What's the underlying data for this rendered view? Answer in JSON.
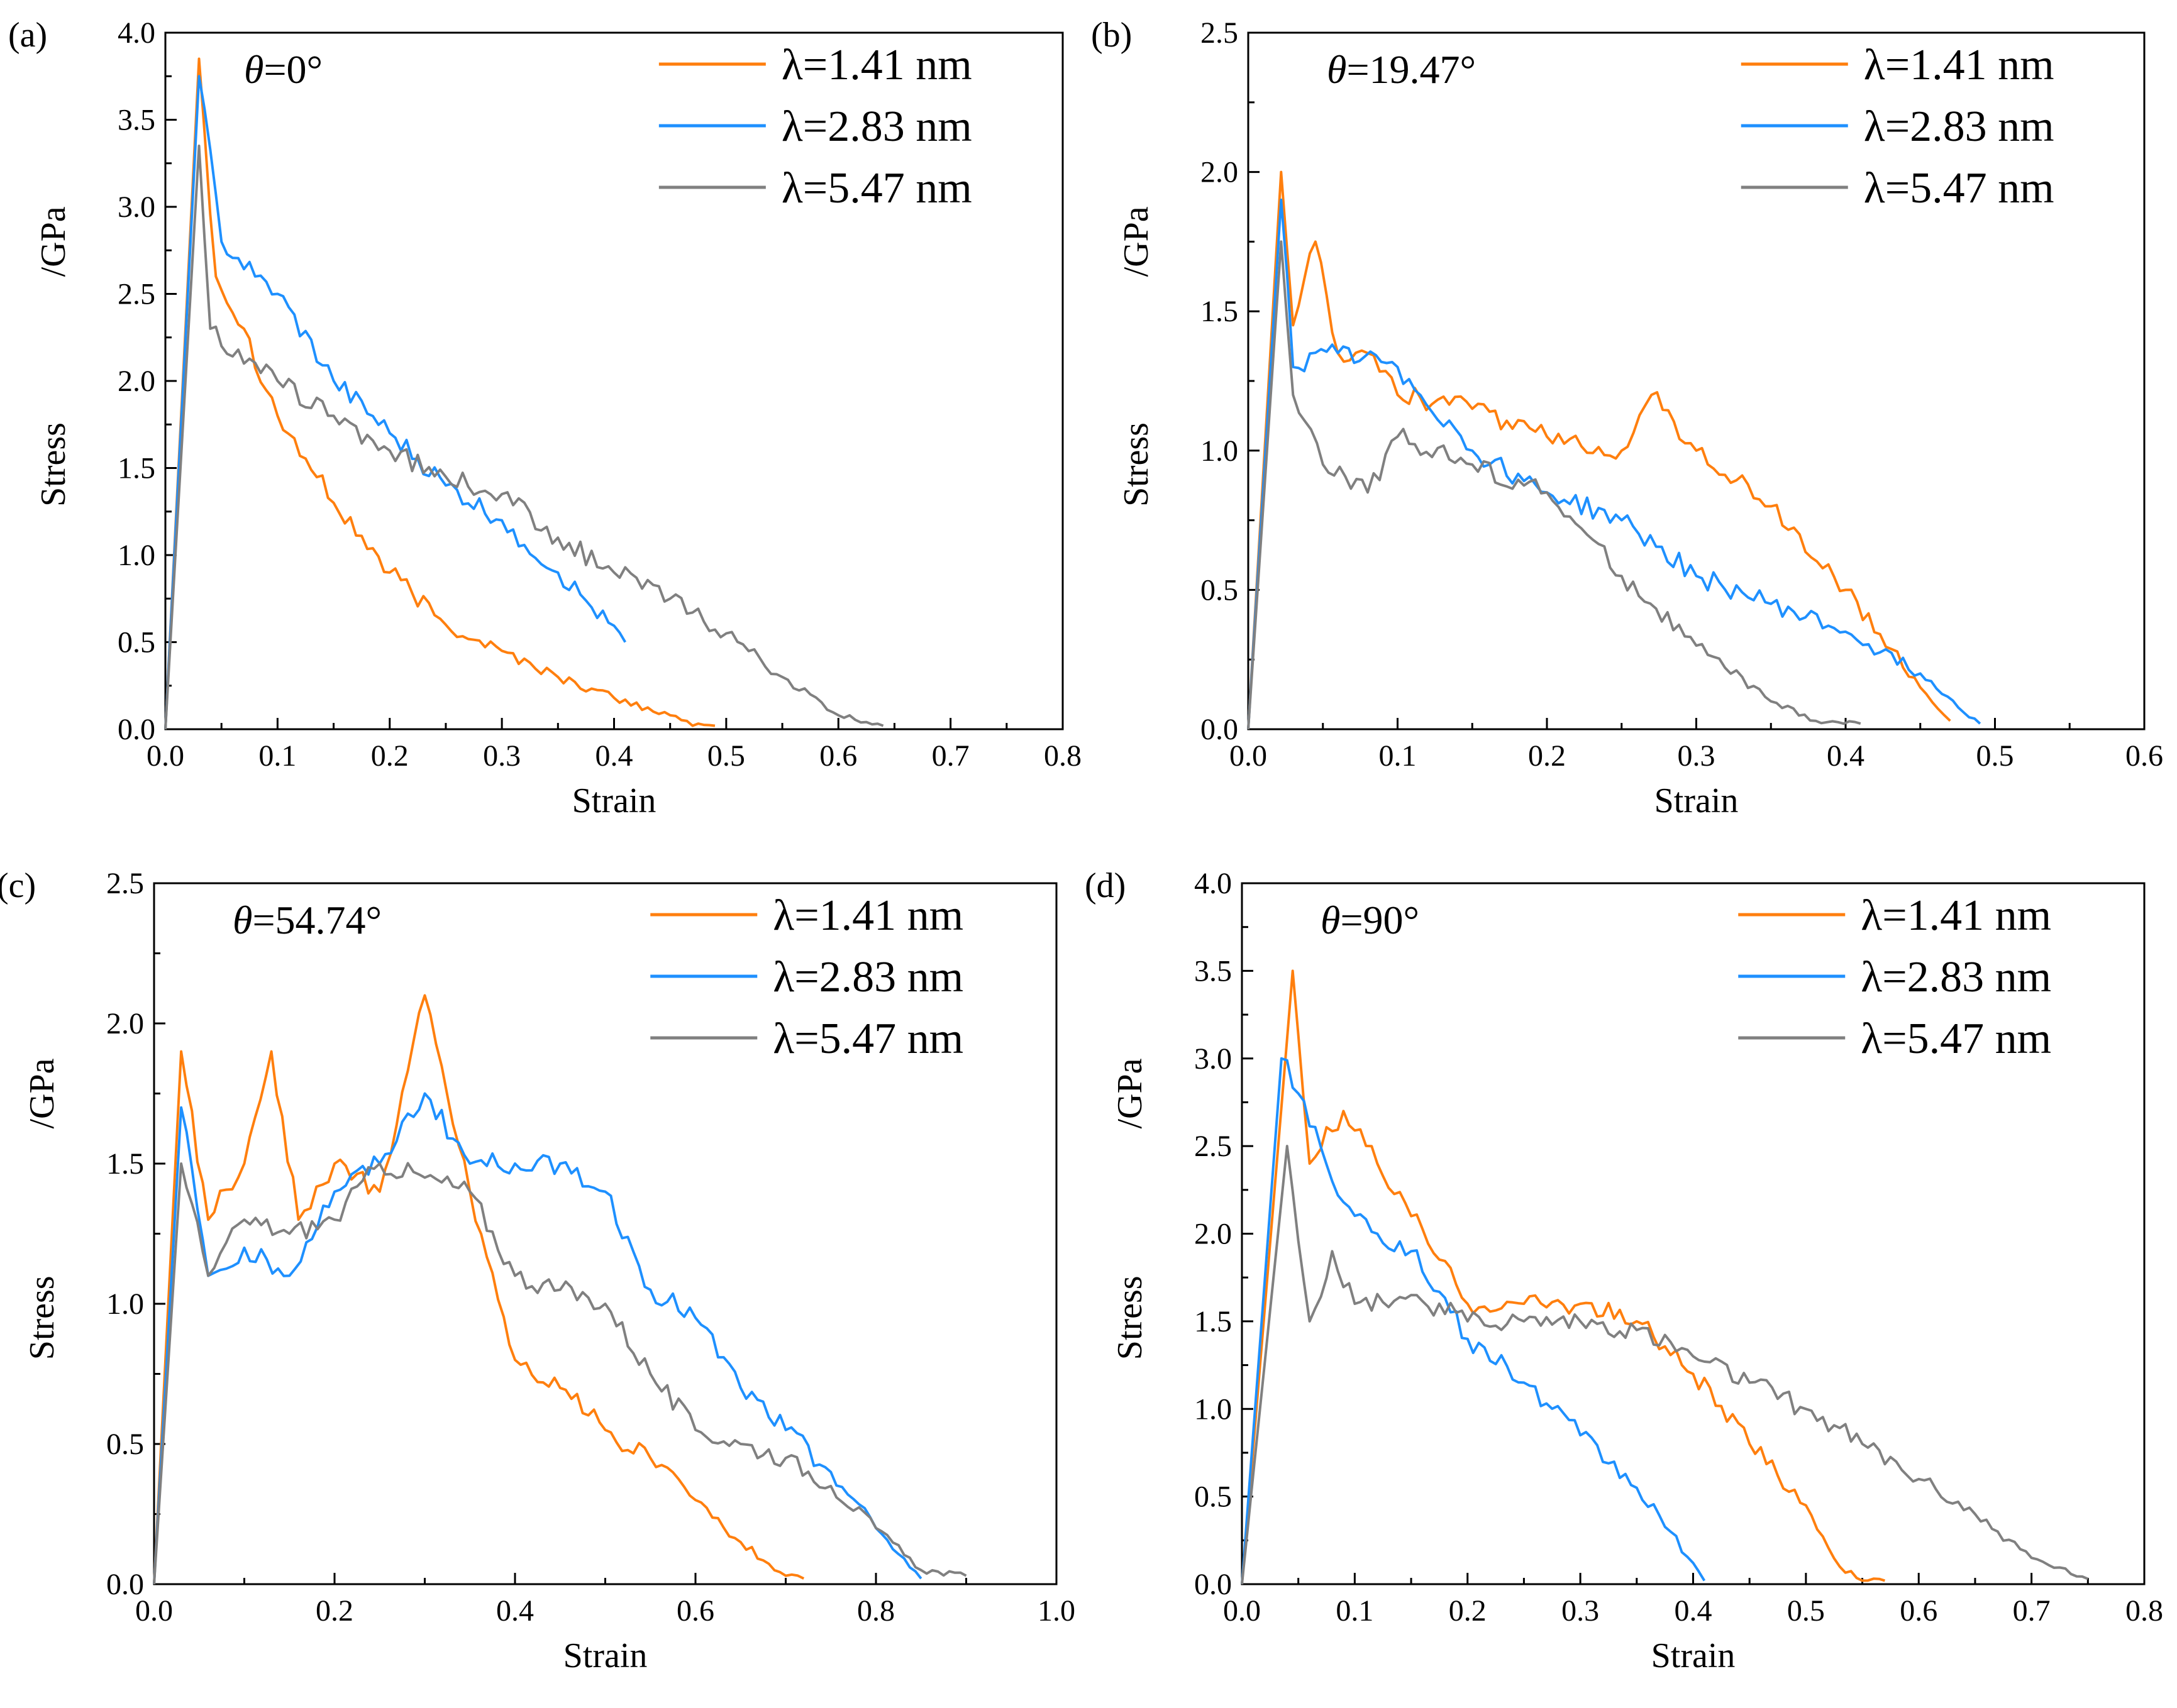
{
  "colors": {
    "orange": "#FF7F0E",
    "blue": "#1E90FF",
    "gray": "#808080"
  },
  "chart_data": [
    {
      "type": "line",
      "panel_label": "(a)",
      "theta_text": "θ=0°",
      "xlabel": "Strain",
      "ylabel_main": "Stress",
      "ylabel_unit": "/GPa",
      "xlim": [
        0,
        0.8
      ],
      "ylim": [
        0,
        4.0
      ],
      "xticks": [
        "0.0",
        "0.1",
        "0.2",
        "0.3",
        "0.4",
        "0.5",
        "0.6",
        "0.7",
        "0.8"
      ],
      "yticks": [
        "0.0",
        "0.5",
        "1.0",
        "1.5",
        "2.0",
        "2.5",
        "3.0",
        "3.5",
        "4.0"
      ],
      "legend": [
        "λ=1.41 nm",
        "λ=2.83 nm",
        "λ=5.47 nm"
      ],
      "series": [
        {
          "name": "λ=1.41 nm",
          "color": "orange",
          "x": [
            0,
            0.03,
            0.045,
            0.07,
            0.1,
            0.15,
            0.2,
            0.25,
            0.3,
            0.35,
            0.4,
            0.45,
            0.47,
            0.49
          ],
          "y": [
            0,
            3.85,
            2.6,
            2.3,
            1.8,
            1.3,
            0.9,
            0.6,
            0.45,
            0.3,
            0.18,
            0.08,
            0.02,
            0.02
          ]
        },
        {
          "name": "λ=2.83 nm",
          "color": "blue",
          "x": [
            0,
            0.03,
            0.05,
            0.08,
            0.1,
            0.15,
            0.2,
            0.25,
            0.3,
            0.35,
            0.38,
            0.41
          ],
          "y": [
            0,
            3.75,
            2.8,
            2.6,
            2.5,
            2.0,
            1.7,
            1.4,
            1.2,
            0.9,
            0.7,
            0.5
          ]
        },
        {
          "name": "λ=5.47 nm",
          "color": "gray",
          "x": [
            0,
            0.03,
            0.04,
            0.07,
            0.1,
            0.15,
            0.2,
            0.25,
            0.3,
            0.35,
            0.4,
            0.45,
            0.5,
            0.55,
            0.6,
            0.64
          ],
          "y": [
            0,
            3.35,
            2.3,
            2.1,
            2.0,
            1.8,
            1.6,
            1.45,
            1.35,
            1.1,
            0.9,
            0.75,
            0.55,
            0.3,
            0.08,
            0.02
          ]
        }
      ]
    },
    {
      "type": "line",
      "panel_label": "(b)",
      "theta_text": "θ=19.47°",
      "xlabel": "Strain",
      "ylabel_main": "Stress",
      "ylabel_unit": "/GPa",
      "xlim": [
        0,
        0.6
      ],
      "ylim": [
        0,
        2.5
      ],
      "xticks": [
        "0.0",
        "0.1",
        "0.2",
        "0.3",
        "0.4",
        "0.5",
        "0.6"
      ],
      "yticks": [
        "0.0",
        "0.5",
        "1.0",
        "1.5",
        "2.0",
        "2.5"
      ],
      "legend": [
        "λ=1.41 nm",
        "λ=2.83 nm",
        "λ=5.47 nm"
      ],
      "series": [
        {
          "name": "λ=1.41 nm",
          "color": "orange",
          "x": [
            0,
            0.022,
            0.03,
            0.045,
            0.06,
            0.08,
            0.1,
            0.15,
            0.2,
            0.25,
            0.27,
            0.3,
            0.35,
            0.4,
            0.45,
            0.47
          ],
          "y": [
            0,
            2.0,
            1.45,
            1.75,
            1.35,
            1.35,
            1.2,
            1.15,
            1.05,
            1.0,
            1.2,
            1.0,
            0.8,
            0.5,
            0.15,
            0.03
          ]
        },
        {
          "name": "λ=2.83 nm",
          "color": "blue",
          "x": [
            0,
            0.022,
            0.03,
            0.06,
            0.1,
            0.15,
            0.2,
            0.25,
            0.3,
            0.35,
            0.4,
            0.45,
            0.49
          ],
          "y": [
            0,
            1.9,
            1.3,
            1.35,
            1.3,
            1.0,
            0.85,
            0.75,
            0.55,
            0.45,
            0.35,
            0.2,
            0.02
          ]
        },
        {
          "name": "λ=5.47 nm",
          "color": "gray",
          "x": [
            0,
            0.022,
            0.03,
            0.05,
            0.08,
            0.1,
            0.15,
            0.2,
            0.25,
            0.3,
            0.35,
            0.38,
            0.41
          ],
          "y": [
            0,
            1.75,
            1.2,
            0.95,
            0.85,
            1.05,
            0.95,
            0.85,
            0.55,
            0.3,
            0.1,
            0.03,
            0.02
          ]
        }
      ]
    },
    {
      "type": "line",
      "panel_label": "(c)",
      "theta_text": "θ=54.74°",
      "xlabel": "Strain",
      "ylabel_main": "Stress",
      "ylabel_unit": "/GPa",
      "xlim": [
        0,
        1.0
      ],
      "ylim": [
        0,
        2.5
      ],
      "xticks": [
        "0.0",
        "0.2",
        "0.4",
        "0.6",
        "0.8",
        "1.0"
      ],
      "yticks": [
        "0.0",
        "0.5",
        "1.0",
        "1.5",
        "2.0",
        "2.5"
      ],
      "legend": [
        "λ=1.41 nm",
        "λ=2.83 nm",
        "λ=5.47 nm"
      ],
      "series": [
        {
          "name": "λ=1.41 nm",
          "color": "orange",
          "x": [
            0,
            0.03,
            0.06,
            0.1,
            0.13,
            0.16,
            0.2,
            0.25,
            0.3,
            0.35,
            0.4,
            0.45,
            0.5,
            0.55,
            0.6,
            0.65,
            0.7,
            0.72
          ],
          "y": [
            0,
            1.9,
            1.3,
            1.5,
            1.9,
            1.3,
            1.5,
            1.4,
            2.1,
            1.4,
            0.8,
            0.7,
            0.55,
            0.45,
            0.3,
            0.15,
            0.03,
            0.02
          ]
        },
        {
          "name": "λ=2.83 nm",
          "color": "blue",
          "x": [
            0,
            0.03,
            0.06,
            0.1,
            0.15,
            0.2,
            0.25,
            0.3,
            0.35,
            0.4,
            0.45,
            0.5,
            0.55,
            0.6,
            0.65,
            0.7,
            0.75,
            0.8,
            0.85
          ],
          "y": [
            0,
            1.7,
            1.1,
            1.2,
            1.1,
            1.4,
            1.5,
            1.75,
            1.5,
            1.5,
            1.5,
            1.4,
            1.05,
            0.95,
            0.7,
            0.55,
            0.4,
            0.2,
            0.02
          ]
        },
        {
          "name": "λ=5.47 nm",
          "color": "gray",
          "x": [
            0,
            0.03,
            0.06,
            0.1,
            0.15,
            0.2,
            0.25,
            0.3,
            0.35,
            0.4,
            0.45,
            0.5,
            0.55,
            0.6,
            0.65,
            0.7,
            0.75,
            0.8,
            0.85,
            0.9
          ],
          "y": [
            0,
            1.5,
            1.1,
            1.3,
            1.25,
            1.3,
            1.5,
            1.45,
            1.4,
            1.1,
            1.05,
            1.0,
            0.75,
            0.55,
            0.5,
            0.45,
            0.35,
            0.2,
            0.05,
            0.03
          ]
        }
      ]
    },
    {
      "type": "line",
      "panel_label": "(d)",
      "theta_text": "θ=90°",
      "xlabel": "Strain",
      "ylabel_main": "Stress",
      "ylabel_unit": "/GPa",
      "xlim": [
        0,
        0.8
      ],
      "ylim": [
        0,
        4.0
      ],
      "xticks": [
        "0.0",
        "0.1",
        "0.2",
        "0.3",
        "0.4",
        "0.5",
        "0.6",
        "0.7",
        "0.8"
      ],
      "yticks": [
        "0.0",
        "0.5",
        "1.0",
        "1.5",
        "2.0",
        "2.5",
        "3.0",
        "3.5",
        "4.0"
      ],
      "legend": [
        "λ=1.41 nm",
        "λ=2.83 nm",
        "λ=5.47 nm"
      ],
      "series": [
        {
          "name": "λ=1.41 nm",
          "color": "orange",
          "x": [
            0,
            0.045,
            0.06,
            0.09,
            0.12,
            0.15,
            0.2,
            0.25,
            0.3,
            0.35,
            0.4,
            0.45,
            0.5,
            0.53,
            0.55,
            0.57
          ],
          "y": [
            0,
            3.5,
            2.4,
            2.7,
            2.4,
            2.1,
            1.6,
            1.6,
            1.6,
            1.5,
            1.2,
            0.8,
            0.45,
            0.1,
            0.02,
            0.02
          ]
        },
        {
          "name": "λ=2.83 nm",
          "color": "blue",
          "x": [
            0,
            0.035,
            0.05,
            0.08,
            0.12,
            0.15,
            0.2,
            0.25,
            0.3,
            0.35,
            0.38,
            0.41
          ],
          "y": [
            0,
            3.0,
            2.8,
            2.3,
            2.0,
            1.9,
            1.4,
            1.15,
            0.85,
            0.55,
            0.3,
            0.02
          ]
        },
        {
          "name": "λ=5.47 nm",
          "color": "gray",
          "x": [
            0,
            0.04,
            0.06,
            0.08,
            0.1,
            0.15,
            0.2,
            0.25,
            0.3,
            0.35,
            0.4,
            0.45,
            0.5,
            0.55,
            0.6,
            0.65,
            0.7,
            0.75
          ],
          "y": [
            0,
            2.5,
            1.5,
            1.9,
            1.6,
            1.65,
            1.5,
            1.5,
            1.5,
            1.45,
            1.3,
            1.15,
            1.0,
            0.8,
            0.6,
            0.4,
            0.15,
            0.03
          ]
        }
      ]
    }
  ]
}
